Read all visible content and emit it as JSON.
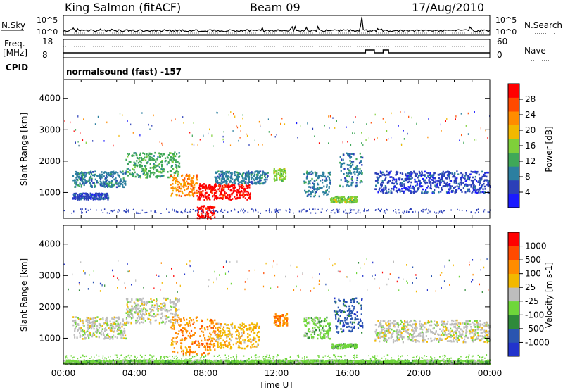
{
  "header": {
    "station": "King Salmon (fitACF)",
    "beam": "Beam 09",
    "date": "17/Aug/2010"
  },
  "status_panels": {
    "nsky_label": "N.Sky",
    "nsearch_label": "N.Search",
    "nsky_ticks": [
      "10^5",
      "10^0"
    ],
    "nsearch_ticks": [
      "10^5",
      "10^0"
    ],
    "freq_label": "Freq.",
    "freq_unit": "[MHz]",
    "freq_ticks": [
      "18",
      "8"
    ],
    "nave_label": "Nave",
    "nave_ticks": [
      "60",
      "0"
    ],
    "cpid_label": "CPID",
    "cpid_text": "normalsound (fast) -157"
  },
  "colors": {
    "power_scale": [
      "#1a1aff",
      "#2b3fb8",
      "#2c7fa0",
      "#3fa858",
      "#7fcf3a",
      "#f2b800",
      "#ff8c00",
      "#ff4a00",
      "#ff0000"
    ],
    "velocity_scale": [
      "#2233cc",
      "#2a55b0",
      "#2f8a3a",
      "#6fd63a",
      "#bdbdbd",
      "#f2b800",
      "#ff8c00",
      "#ff4a00",
      "#ff0000"
    ]
  },
  "chart_data": [
    {
      "type": "heatmap",
      "name": "power",
      "ylabel": "Slant Range [km]",
      "y_ticks": [
        "4000",
        "3000",
        "2000",
        "1000"
      ],
      "ylim": [
        180,
        4600
      ],
      "xlim": [
        "00:00",
        "24:00"
      ],
      "x_ticks": [
        "00:00",
        "04:00",
        "08:00",
        "12:00",
        "16:00",
        "20:00",
        "00:00"
      ],
      "colorbar_label": "Power [dB]",
      "colorbar_ticks": [
        "28",
        "24",
        "20",
        "16",
        "12",
        "8",
        "4"
      ],
      "bands": [
        {
          "t0": 0.5,
          "t1": 3.5,
          "r0": 1200,
          "r1": 1700,
          "level": 2
        },
        {
          "t0": 3.5,
          "t1": 6.5,
          "r0": 1500,
          "r1": 2300,
          "level": 3
        },
        {
          "t0": 6.0,
          "t1": 7.5,
          "r0": 900,
          "r1": 1600,
          "level": 6
        },
        {
          "t0": 7.5,
          "t1": 10.5,
          "r0": 800,
          "r1": 1300,
          "level": 8
        },
        {
          "t0": 7.5,
          "t1": 8.5,
          "r0": 200,
          "r1": 600,
          "level": 8
        },
        {
          "t0": 8.5,
          "t1": 11.5,
          "r0": 1300,
          "r1": 1700,
          "level": 2
        },
        {
          "t0": 11.8,
          "t1": 12.5,
          "r0": 1400,
          "r1": 1800,
          "level": 4
        },
        {
          "t0": 13.5,
          "t1": 15.0,
          "r0": 900,
          "r1": 1700,
          "level": 2
        },
        {
          "t0": 15.5,
          "t1": 16.8,
          "r0": 1200,
          "r1": 2300,
          "level": 2
        },
        {
          "t0": 15.0,
          "t1": 16.5,
          "r0": 700,
          "r1": 900,
          "level": 4
        },
        {
          "t0": 17.5,
          "t1": 24.0,
          "r0": 1000,
          "r1": 1700,
          "level": 1
        },
        {
          "t0": 0.5,
          "t1": 2.5,
          "r0": 800,
          "r1": 1000,
          "level": 1
        }
      ]
    },
    {
      "type": "heatmap",
      "name": "velocity",
      "ylabel": "Slant Range [km]",
      "y_ticks": [
        "4000",
        "3000",
        "2000",
        "1000"
      ],
      "ylim": [
        180,
        4600
      ],
      "xlim": [
        "00:00",
        "24:00"
      ],
      "x_ticks": [
        "00:00",
        "04:00",
        "08:00",
        "12:00",
        "16:00",
        "20:00",
        "00:00"
      ],
      "xlabel": "Time UT",
      "colorbar_label": "Velocity [m s-1]",
      "colorbar_ticks": [
        "1000",
        "500",
        "100",
        "25",
        "-25",
        "-100",
        "-500",
        "-1000"
      ],
      "bands": [
        {
          "t0": 0.5,
          "t1": 3.5,
          "r0": 1000,
          "r1": 1700,
          "level": 4
        },
        {
          "t0": 3.5,
          "t1": 6.5,
          "r0": 1500,
          "r1": 2300,
          "level": 4
        },
        {
          "t0": 6.0,
          "t1": 8.5,
          "r0": 500,
          "r1": 1700,
          "level": 6
        },
        {
          "t0": 8.5,
          "t1": 11.0,
          "r0": 700,
          "r1": 1500,
          "level": 5
        },
        {
          "t0": 11.8,
          "t1": 12.6,
          "r0": 1400,
          "r1": 1800,
          "level": 6
        },
        {
          "t0": 13.5,
          "t1": 15.0,
          "r0": 1000,
          "r1": 1700,
          "level": 3
        },
        {
          "t0": 15.2,
          "t1": 16.8,
          "r0": 1200,
          "r1": 2300,
          "level": 1
        },
        {
          "t0": 15.0,
          "t1": 16.5,
          "r0": 700,
          "r1": 850,
          "level": 3
        },
        {
          "t0": 17.5,
          "t1": 24.0,
          "r0": 900,
          "r1": 1600,
          "level": 4
        },
        {
          "t0": 0.0,
          "t1": 24.0,
          "r0": 200,
          "r1": 330,
          "level": 3
        }
      ]
    }
  ]
}
